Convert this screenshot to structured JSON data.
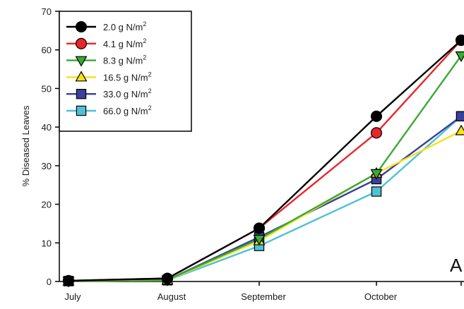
{
  "chart_data": {
    "type": "line",
    "title": "",
    "xlabel": "",
    "ylabel": "% Diseased Leaves",
    "panel_label": "A",
    "categories": [
      "July",
      "August",
      "September",
      "October",
      ""
    ],
    "yticks": [
      "0",
      "10",
      "20",
      "30",
      "40",
      "50",
      "60",
      "70"
    ],
    "ylim": [
      0,
      70
    ],
    "grid": false,
    "legend_position": "top-left",
    "series": [
      {
        "name": "2.0 g N/m",
        "unit_sup": "2",
        "color": "#000000",
        "marker": "circle",
        "values": [
          0.2,
          0.8,
          13.8,
          42.8,
          62.5
        ]
      },
      {
        "name": "4.1 g N/m",
        "unit_sup": "2",
        "color": "#e8262a",
        "marker": "circle",
        "values": [
          0.2,
          0.8,
          13.8,
          38.5,
          62.5
        ]
      },
      {
        "name": "8.3 g N/m",
        "unit_sup": "2",
        "color": "#3aa935",
        "marker": "triangle-down",
        "values": [
          0.1,
          0.4,
          11.0,
          28.0,
          58.5
        ]
      },
      {
        "name": "16.5 g N/m",
        "unit_sup": "2",
        "color": "#f7e11b",
        "marker": "triangle-up",
        "values": [
          0.1,
          0.3,
          10.5,
          28.0,
          39.0
        ]
      },
      {
        "name": "33.0 g N/m",
        "unit_sup": "2",
        "color": "#3a3fa0",
        "marker": "square",
        "values": [
          0.1,
          0.4,
          11.5,
          26.5,
          42.8
        ]
      },
      {
        "name": "66.0 g N/m",
        "unit_sup": "2",
        "color": "#4fc0d6",
        "marker": "square",
        "values": [
          0.1,
          0.3,
          9.2,
          23.3,
          42.8
        ]
      }
    ]
  }
}
